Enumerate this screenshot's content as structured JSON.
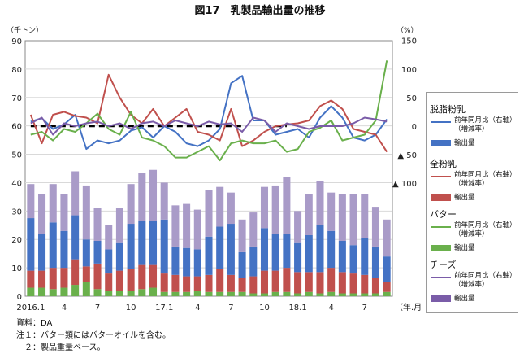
{
  "chart_data": {
    "type": "bar",
    "title": "図17　乳製品輸出量の推移",
    "left_unit": "（千トン）",
    "right_unit": "（%）",
    "x_unit": "（年.月）",
    "left_ylim": [
      0,
      90
    ],
    "left_ticks": [
      0,
      10,
      20,
      30,
      40,
      50,
      60,
      70,
      80,
      90
    ],
    "right_ticks": [
      {
        "value": 150,
        "label": "150"
      },
      {
        "value": 100,
        "label": "100"
      },
      {
        "value": 50,
        "label": "50"
      },
      {
        "value": 0,
        "label": "0"
      },
      {
        "value": -50,
        "label": "▲ 50"
      },
      {
        "value": -100,
        "label": "▲ 100"
      }
    ],
    "x_tick_labels": [
      {
        "index": 0,
        "label": "2016.1"
      },
      {
        "index": 3,
        "label": "4"
      },
      {
        "index": 6,
        "label": "7"
      },
      {
        "index": 9,
        "label": "10"
      },
      {
        "index": 12,
        "label": "17.1"
      },
      {
        "index": 15,
        "label": "4"
      },
      {
        "index": 18,
        "label": "7"
      },
      {
        "index": 21,
        "label": "10"
      },
      {
        "index": 24,
        "label": "18.1"
      },
      {
        "index": 27,
        "label": "4"
      },
      {
        "index": 30,
        "label": "7"
      }
    ],
    "bar_series": [
      {
        "name": "バター",
        "color": "#6ab04c",
        "values": [
          3,
          3,
          2.5,
          3,
          4,
          5,
          2.5,
          2,
          2,
          2,
          2.5,
          3,
          1.5,
          1.5,
          1.5,
          2,
          1.5,
          1.5,
          1.5,
          1.5,
          1,
          1,
          1.5,
          1.5,
          1,
          1.5,
          1,
          1.5,
          1,
          1,
          1,
          1,
          1.5
        ]
      },
      {
        "name": "全粉乳",
        "color": "#c0504d",
        "values": [
          6,
          6,
          7.5,
          7,
          9,
          5.5,
          9,
          6,
          7,
          7.5,
          8.5,
          8,
          6.5,
          6,
          5.5,
          5,
          6,
          8,
          6,
          5,
          6,
          8,
          7.5,
          8.5,
          7.5,
          7,
          7.5,
          8.5,
          7.5,
          7,
          6.5,
          5.5,
          3.5
        ]
      },
      {
        "name": "脱脂粉乳",
        "color": "#4472c4",
        "values": [
          18.5,
          13,
          16,
          13,
          15.5,
          9.5,
          8,
          8.5,
          10,
          16,
          15.5,
          15.5,
          19,
          10,
          10,
          9.5,
          13.5,
          15,
          18,
          9,
          10.5,
          15,
          13,
          12,
          10.5,
          13,
          16.5,
          13,
          11,
          10,
          13,
          11,
          9
        ]
      },
      {
        "name": "チーズ",
        "color": "#a99bc8",
        "values": [
          12,
          14,
          13.5,
          13,
          15.5,
          19,
          11.5,
          8.5,
          12,
          14,
          17,
          18,
          13,
          14.5,
          15.5,
          14,
          16.5,
          14,
          11,
          11.5,
          12,
          14.5,
          17,
          20,
          11,
          14.5,
          15.5,
          13.5,
          16.5,
          18,
          15.5,
          14,
          13
        ]
      }
    ],
    "line_series": [
      {
        "name": "脱脂粉乳",
        "color": "#4472c4",
        "values": [
          8,
          14,
          -5,
          3,
          20,
          -40,
          -25,
          -30,
          -25,
          -8,
          -2,
          -20,
          0,
          -10,
          -30,
          -35,
          -25,
          -5,
          75,
          88,
          10,
          10,
          -15,
          -10,
          -5,
          -20,
          15,
          35,
          15,
          -20,
          -25,
          -15,
          12
        ]
      },
      {
        "name": "全粉乳",
        "color": "#c0504d",
        "values": [
          20,
          -30,
          20,
          25,
          18,
          15,
          5,
          90,
          50,
          20,
          5,
          30,
          0,
          15,
          30,
          -10,
          -15,
          -25,
          30,
          -35,
          -25,
          -10,
          0,
          3,
          5,
          10,
          35,
          45,
          30,
          -5,
          -10,
          -15,
          -45
        ]
      },
      {
        "name": "バター",
        "color": "#6ab04c",
        "values": [
          -15,
          -10,
          -25,
          -5,
          -10,
          5,
          22,
          -5,
          -15,
          25,
          -20,
          -25,
          -35,
          -55,
          -55,
          -45,
          -35,
          -60,
          -30,
          -25,
          -30,
          -30,
          -25,
          -45,
          -40,
          -10,
          -3,
          10,
          -25,
          -20,
          -15,
          10,
          115
        ]
      },
      {
        "name": "チーズ",
        "color": "#7a5ca8",
        "values": [
          5,
          15,
          -15,
          5,
          0,
          5,
          8,
          0,
          5,
          -5,
          5,
          8,
          0,
          10,
          5,
          0,
          8,
          3,
          5,
          -10,
          15,
          10,
          -10,
          5,
          0,
          -5,
          0,
          0,
          0,
          5,
          15,
          12,
          8
        ]
      }
    ],
    "zero_dash_segments": [
      [
        0,
        19
      ],
      [
        22,
        23
      ]
    ],
    "legend": [
      {
        "group": "脱脂粉乳",
        "line_label_1": "前年同月比（右軸）",
        "line_label_2": "（増減率）",
        "bar_label": "輸出量",
        "line_color": "#4472c4",
        "bar_color": "#4472c4"
      },
      {
        "group": "全粉乳",
        "line_label_1": "前年同月比（右軸）",
        "line_label_2": "（増減率）",
        "bar_label": "輸出量",
        "line_color": "#c0504d",
        "bar_color": "#c0504d"
      },
      {
        "group": "バター",
        "line_label_1": "前年同月比（右軸）",
        "line_label_2": "（増減率）",
        "bar_label": "輸出量",
        "line_color": "#6ab04c",
        "bar_color": "#6ab04c"
      },
      {
        "group": "チーズ",
        "line_label_1": "前年同月比（右軸）",
        "line_label_2": "（増減率）",
        "bar_label": "輸出量",
        "line_color": "#7a5ca8",
        "bar_color": "#7a5ca8"
      }
    ]
  },
  "notes": {
    "source": "資料：DA",
    "note1": "注１：バター類にはバターオイルを含む。",
    "note2": "　２：製品重量ベース。"
  }
}
